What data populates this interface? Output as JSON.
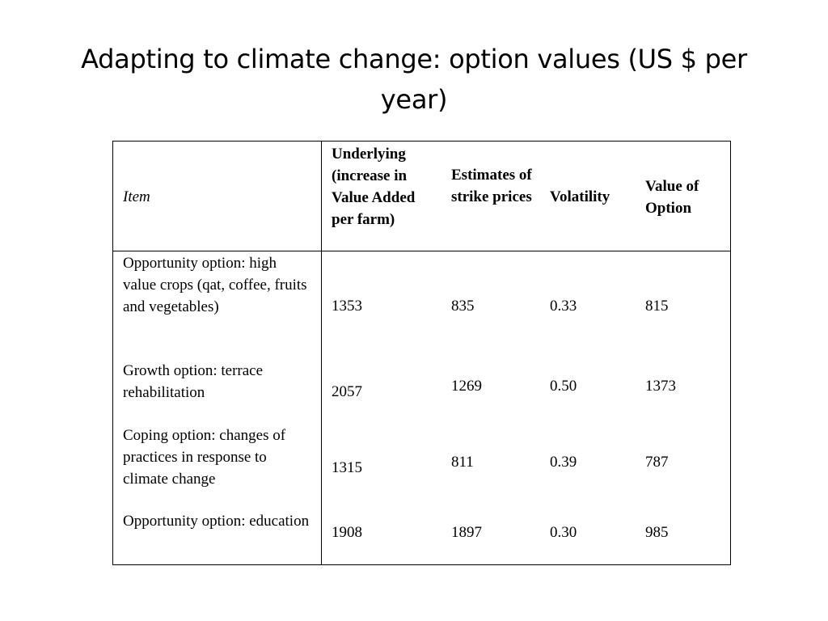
{
  "title": "Adapting to climate change: option values  (US $ per year)",
  "table": {
    "headers": {
      "item": "Item",
      "underlying": "Underlying (increase in Value Added per farm)",
      "strike": "Estimates of strike prices",
      "volatility": "Volatility",
      "option_value": "Value of Option"
    },
    "rows": [
      {
        "item": "Opportunity option: high value crops (qat, coffee, fruits and vegetables)",
        "underlying": "1353",
        "strike": "835",
        "volatility": "0.33",
        "option_value": "815"
      },
      {
        "item": "Growth option: terrace rehabilitation",
        "underlying": "2057",
        "strike": "1269",
        "volatility": "0.50",
        "option_value": "1373"
      },
      {
        "item": "Coping option: changes of practices in response to climate change",
        "underlying": "1315",
        "strike": "811",
        "volatility": "0.39",
        "option_value": "787"
      },
      {
        "item": "Opportunity option: education",
        "underlying": "1908",
        "strike": "1897",
        "volatility": "0.30",
        "option_value": "985"
      }
    ]
  }
}
